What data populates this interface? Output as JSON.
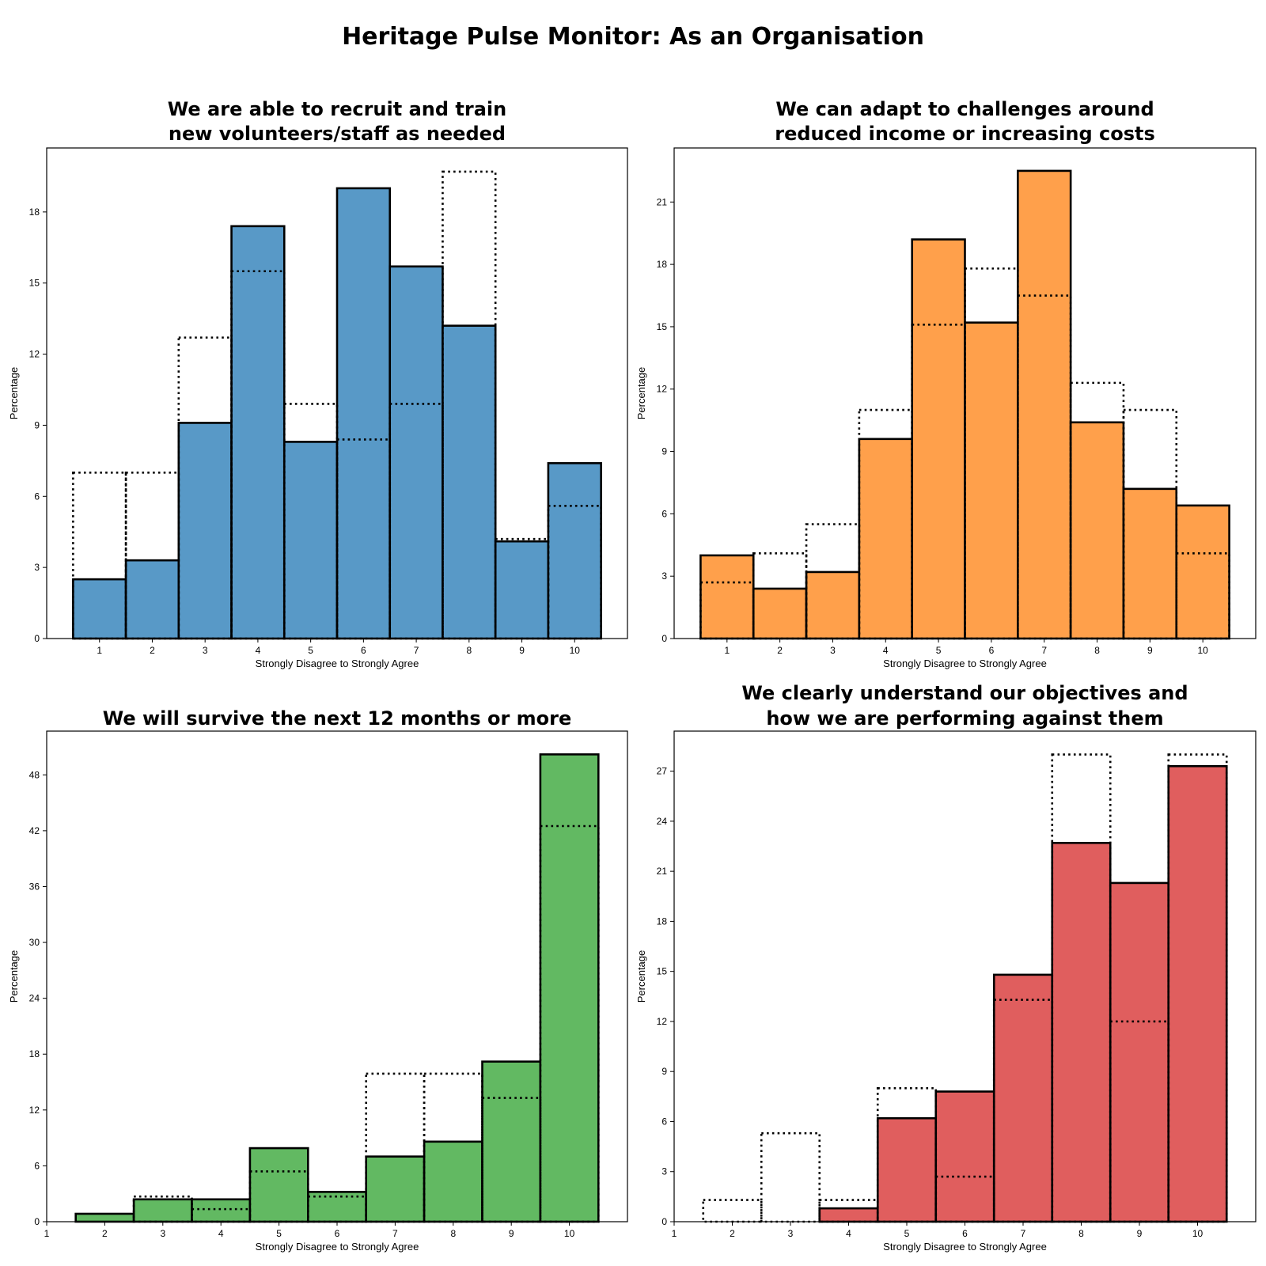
{
  "title": "Heritage Pulse Monitor: As an Organisation",
  "chart_data": [
    {
      "type": "bar",
      "title": [
        "We are able to recruit and train",
        "new volunteers/staff as needed"
      ],
      "xlabel": "Strongly Disagree to Strongly Agree",
      "ylabel": "Percentage",
      "color": "#5899c7",
      "categories": [
        1,
        2,
        3,
        4,
        5,
        6,
        7,
        8,
        9,
        10
      ],
      "xticks": [
        1,
        2,
        3,
        4,
        5,
        6,
        7,
        8,
        9,
        10
      ],
      "xlim": [
        0,
        11
      ],
      "ylim": [
        0,
        20.7
      ],
      "yticks": [
        0,
        3,
        6,
        9,
        12,
        15,
        18
      ],
      "grid": false,
      "series": [
        {
          "name": "current",
          "style": "filled",
          "values": [
            2.5,
            3.3,
            9.1,
            17.4,
            8.3,
            19.0,
            15.7,
            13.2,
            4.1,
            7.4
          ]
        },
        {
          "name": "comparison",
          "style": "dotted-outline",
          "values": [
            7.0,
            7.0,
            12.7,
            15.5,
            9.9,
            8.4,
            9.9,
            19.7,
            4.2,
            5.6
          ]
        }
      ]
    },
    {
      "type": "bar",
      "title": [
        "We can adapt to challenges around",
        "reduced income or increasing costs"
      ],
      "xlabel": "Strongly Disagree to Strongly Agree",
      "ylabel": "Percentage",
      "color": "#ffa04b",
      "categories": [
        1,
        2,
        3,
        4,
        5,
        6,
        7,
        8,
        9,
        10
      ],
      "xticks": [
        1,
        2,
        3,
        4,
        5,
        6,
        7,
        8,
        9,
        10
      ],
      "xlim": [
        0,
        11
      ],
      "ylim": [
        0,
        23.6
      ],
      "yticks": [
        0,
        3,
        6,
        9,
        12,
        15,
        18,
        21
      ],
      "grid": false,
      "series": [
        {
          "name": "current",
          "style": "filled",
          "values": [
            4.0,
            2.4,
            3.2,
            9.6,
            19.2,
            15.2,
            22.5,
            10.4,
            7.2,
            6.4
          ]
        },
        {
          "name": "comparison",
          "style": "dotted-outline",
          "values": [
            2.7,
            4.1,
            5.5,
            11.0,
            15.1,
            17.8,
            16.5,
            12.3,
            11.0,
            4.1
          ]
        }
      ]
    },
    {
      "type": "bar",
      "title": [
        "We will survive the next 12 months or more"
      ],
      "xlabel": "Strongly Disagree to Strongly Agree",
      "ylabel": "Percentage",
      "color": "#62b962",
      "categories": [
        2,
        3,
        4,
        5,
        6,
        7,
        8,
        9,
        10
      ],
      "xticks": [
        1,
        2,
        3,
        4,
        5,
        6,
        7,
        8,
        9,
        10
      ],
      "xlim": [
        1,
        11
      ],
      "ylim": [
        0,
        52.7
      ],
      "yticks": [
        0,
        6,
        12,
        18,
        24,
        30,
        36,
        42,
        48
      ],
      "grid": false,
      "series": [
        {
          "name": "current",
          "style": "filled",
          "values": [
            0.85,
            2.4,
            2.4,
            7.9,
            3.2,
            7.0,
            8.6,
            17.2,
            50.2
          ]
        },
        {
          "name": "comparison",
          "style": "dotted-outline",
          "values": [
            0,
            2.7,
            1.35,
            5.4,
            2.7,
            15.9,
            15.9,
            13.3,
            42.5
          ]
        }
      ]
    },
    {
      "type": "bar",
      "title": [
        "We clearly understand our objectives and",
        "how we are performing against them"
      ],
      "xlabel": "Strongly Disagree to Strongly Agree",
      "ylabel": "Percentage",
      "color": "#e05e5e",
      "categories": [
        2,
        3,
        4,
        5,
        6,
        7,
        8,
        9,
        10
      ],
      "xticks": [
        1,
        2,
        3,
        4,
        5,
        6,
        7,
        8,
        9,
        10
      ],
      "xlim": [
        1,
        11
      ],
      "ylim": [
        0,
        29.4
      ],
      "yticks": [
        0,
        3,
        6,
        9,
        12,
        15,
        18,
        21,
        24,
        27
      ],
      "grid": false,
      "series": [
        {
          "name": "current",
          "style": "filled",
          "values": [
            0,
            0,
            0.8,
            6.2,
            7.8,
            14.8,
            22.7,
            20.3,
            27.3
          ]
        },
        {
          "name": "comparison",
          "style": "dotted-outline",
          "values": [
            1.3,
            5.3,
            1.3,
            8.0,
            2.7,
            13.3,
            28.0,
            12.0,
            28.0
          ]
        }
      ]
    }
  ]
}
